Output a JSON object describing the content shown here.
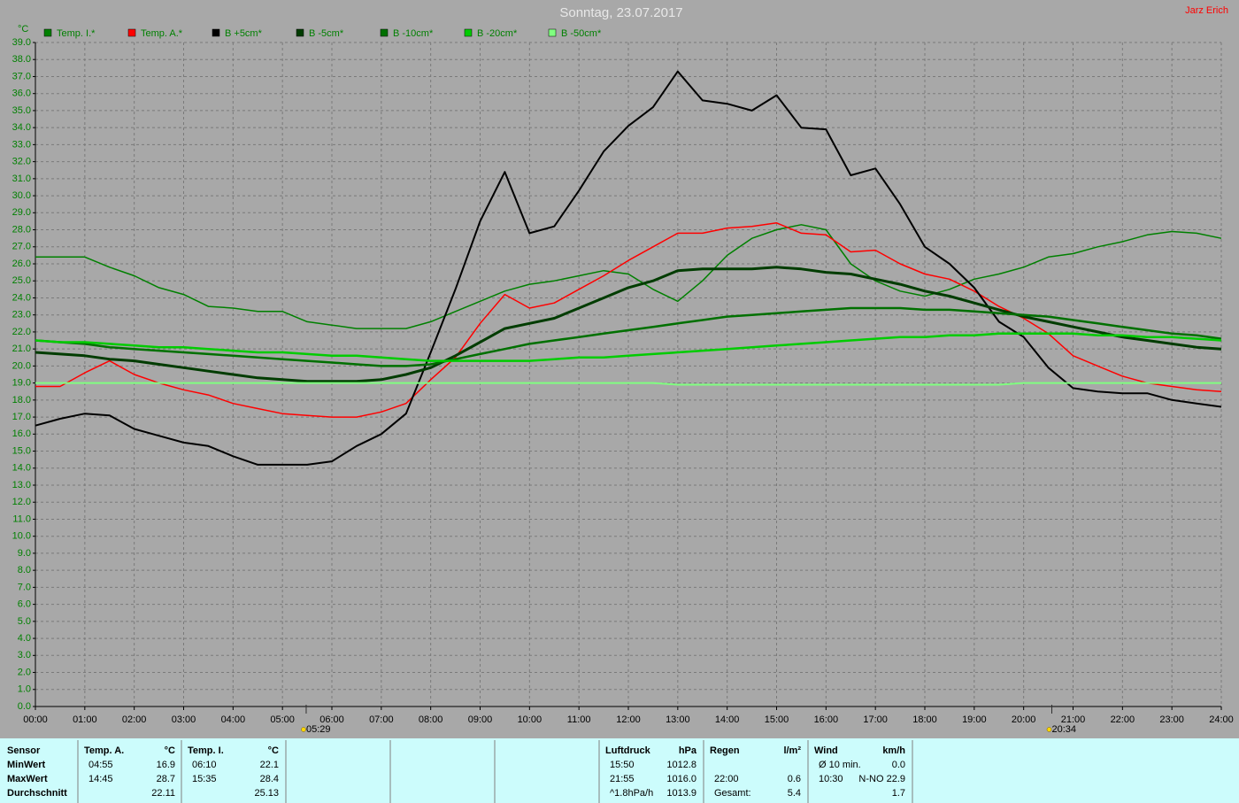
{
  "chart_data": {
    "type": "line",
    "title": "Sonntag, 23.07.2017",
    "author": "Jarz Erich",
    "y_unit": "°C",
    "xlim": [
      0,
      24
    ],
    "ylim": [
      0,
      39
    ],
    "grid": true,
    "x": [
      0,
      0.5,
      1,
      1.5,
      2,
      2.5,
      3,
      3.5,
      4,
      4.5,
      5,
      5.5,
      6,
      6.5,
      7,
      7.5,
      8,
      8.5,
      9,
      9.5,
      10,
      10.5,
      11,
      11.5,
      12,
      12.5,
      13,
      13.5,
      14,
      14.5,
      15,
      15.5,
      16,
      16.5,
      17,
      17.5,
      18,
      18.5,
      19,
      19.5,
      20,
      20.5,
      21,
      21.5,
      22,
      22.5,
      23,
      23.5,
      24
    ],
    "xticks": [
      {
        "value": 0,
        "label": "00:00"
      },
      {
        "value": 1,
        "label": "01:00"
      },
      {
        "value": 2,
        "label": "02:00"
      },
      {
        "value": 3,
        "label": "03:00"
      },
      {
        "value": 4,
        "label": "04:00"
      },
      {
        "value": 5,
        "label": "05:00"
      },
      {
        "value": 6,
        "label": "06:00"
      },
      {
        "value": 7,
        "label": "07:00"
      },
      {
        "value": 8,
        "label": "08:00"
      },
      {
        "value": 9,
        "label": "09:00"
      },
      {
        "value": 10,
        "label": "10:00"
      },
      {
        "value": 11,
        "label": "11:00"
      },
      {
        "value": 12,
        "label": "12:00"
      },
      {
        "value": 13,
        "label": "13:00"
      },
      {
        "value": 14,
        "label": "14:00"
      },
      {
        "value": 15,
        "label": "15:00"
      },
      {
        "value": 16,
        "label": "16:00"
      },
      {
        "value": 17,
        "label": "17:00"
      },
      {
        "value": 18,
        "label": "18:00"
      },
      {
        "value": 19,
        "label": "19:00"
      },
      {
        "value": 20,
        "label": "20:00"
      },
      {
        "value": 21,
        "label": "21:00"
      },
      {
        "value": 22,
        "label": "22:00"
      },
      {
        "value": 23,
        "label": "23:00"
      },
      {
        "value": 24,
        "label": "24:00"
      }
    ],
    "yticks": [
      {
        "value": 0,
        "label": "0.0"
      },
      {
        "value": 1,
        "label": "1.0"
      },
      {
        "value": 2,
        "label": "2.0"
      },
      {
        "value": 3,
        "label": "3.0"
      },
      {
        "value": 4,
        "label": "4.0"
      },
      {
        "value": 5,
        "label": "5.0"
      },
      {
        "value": 6,
        "label": "6.0"
      },
      {
        "value": 7,
        "label": "7.0"
      },
      {
        "value": 8,
        "label": "8.0"
      },
      {
        "value": 9,
        "label": "9.0"
      },
      {
        "value": 10,
        "label": "10.0"
      },
      {
        "value": 11,
        "label": "11.0"
      },
      {
        "value": 12,
        "label": "12.0"
      },
      {
        "value": 13,
        "label": "13.0"
      },
      {
        "value": 14,
        "label": "14.0"
      },
      {
        "value": 15,
        "label": "15.0"
      },
      {
        "value": 16,
        "label": "16.0"
      },
      {
        "value": 17,
        "label": "17.0"
      },
      {
        "value": 18,
        "label": "18.0"
      },
      {
        "value": 19,
        "label": "19.0"
      },
      {
        "value": 20,
        "label": "20.0"
      },
      {
        "value": 21,
        "label": "21.0"
      },
      {
        "value": 22,
        "label": "22.0"
      },
      {
        "value": 23,
        "label": "23.0"
      },
      {
        "value": 24,
        "label": "24.0"
      },
      {
        "value": 25,
        "label": "25.0"
      },
      {
        "value": 26,
        "label": "26.0"
      },
      {
        "value": 27,
        "label": "27.0"
      },
      {
        "value": 28,
        "label": "28.0"
      },
      {
        "value": 29,
        "label": "29.0"
      },
      {
        "value": 30,
        "label": "30.0"
      },
      {
        "value": 31,
        "label": "31.0"
      },
      {
        "value": 32,
        "label": "32.0"
      },
      {
        "value": 33,
        "label": "33.0"
      },
      {
        "value": 34,
        "label": "34.0"
      },
      {
        "value": 35,
        "label": "35.0"
      },
      {
        "value": 36,
        "label": "36.0"
      },
      {
        "value": 37,
        "label": "37.0"
      },
      {
        "value": 38,
        "label": "38.0"
      },
      {
        "value": 39,
        "label": "39.0"
      }
    ],
    "annotations": [
      {
        "text": "05:29",
        "x": 5.48
      },
      {
        "text": "20:34",
        "x": 20.57
      }
    ],
    "series": [
      {
        "name": "Temp. I.*",
        "color": "#008000",
        "values": [
          26.4,
          26.4,
          26.4,
          25.8,
          25.3,
          24.6,
          24.2,
          23.5,
          23.4,
          23.2,
          23.2,
          22.6,
          22.4,
          22.2,
          22.2,
          22.2,
          22.6,
          23.2,
          23.8,
          24.4,
          24.8,
          25.0,
          25.3,
          25.6,
          25.4,
          24.5,
          23.8,
          25.0,
          26.5,
          27.5,
          28.0,
          28.3,
          28.0,
          26.0,
          25.0,
          24.4,
          24.1,
          24.5,
          25.1,
          25.4,
          25.8,
          26.4,
          26.6,
          27.0,
          27.3,
          27.7,
          27.9,
          27.8,
          27.5
        ]
      },
      {
        "name": "Temp. A.*",
        "color": "#ff0000",
        "values": [
          18.8,
          18.8,
          19.6,
          20.3,
          19.5,
          19.0,
          18.6,
          18.3,
          17.8,
          17.5,
          17.2,
          17.1,
          17.0,
          17.0,
          17.3,
          17.8,
          19.2,
          20.5,
          22.5,
          24.2,
          23.4,
          23.7,
          24.5,
          25.3,
          26.2,
          27.0,
          27.8,
          27.8,
          28.1,
          28.2,
          28.4,
          27.8,
          27.7,
          26.7,
          26.8,
          26.0,
          25.4,
          25.1,
          24.4,
          23.5,
          22.8,
          21.9,
          20.6,
          20.0,
          19.4,
          19.0,
          18.8,
          18.6,
          18.5
        ]
      },
      {
        "name": "B +5cm*",
        "color": "#000000",
        "values": [
          16.5,
          16.9,
          17.2,
          17.1,
          16.3,
          15.9,
          15.5,
          15.3,
          14.7,
          14.2,
          14.2,
          14.2,
          14.4,
          15.3,
          16.0,
          17.2,
          20.8,
          24.5,
          28.5,
          31.4,
          27.8,
          28.2,
          30.3,
          32.6,
          34.1,
          35.2,
          37.3,
          35.6,
          35.4,
          35.0,
          35.9,
          34.0,
          33.9,
          31.2,
          31.6,
          29.5,
          27.0,
          26.0,
          24.6,
          22.6,
          21.7,
          19.9,
          18.7,
          18.5,
          18.4,
          18.4,
          18.0,
          17.8,
          17.6
        ]
      },
      {
        "name": "B -5cm*",
        "color": "#003c00",
        "values": [
          20.8,
          20.7,
          20.6,
          20.4,
          20.3,
          20.1,
          19.9,
          19.7,
          19.5,
          19.3,
          19.2,
          19.1,
          19.1,
          19.1,
          19.2,
          19.5,
          19.9,
          20.6,
          21.4,
          22.2,
          22.5,
          22.8,
          23.4,
          24.0,
          24.6,
          25.0,
          25.6,
          25.7,
          25.7,
          25.7,
          25.8,
          25.7,
          25.5,
          25.4,
          25.1,
          24.8,
          24.4,
          24.1,
          23.7,
          23.3,
          22.9,
          22.6,
          22.3,
          22.0,
          21.7,
          21.5,
          21.3,
          21.1,
          21.0
        ]
      },
      {
        "name": "B -10cm*",
        "color": "#007000",
        "values": [
          21.5,
          21.4,
          21.3,
          21.1,
          21.0,
          20.9,
          20.8,
          20.7,
          20.6,
          20.5,
          20.4,
          20.3,
          20.2,
          20.1,
          20.0,
          20.0,
          20.1,
          20.4,
          20.7,
          21.0,
          21.3,
          21.5,
          21.7,
          21.9,
          22.1,
          22.3,
          22.5,
          22.7,
          22.9,
          23.0,
          23.1,
          23.2,
          23.3,
          23.4,
          23.4,
          23.4,
          23.3,
          23.3,
          23.2,
          23.1,
          23.0,
          22.9,
          22.7,
          22.5,
          22.3,
          22.1,
          21.9,
          21.8,
          21.6
        ]
      },
      {
        "name": "B -20cm*",
        "color": "#00cc00",
        "values": [
          21.5,
          21.4,
          21.4,
          21.3,
          21.2,
          21.1,
          21.1,
          21.0,
          20.9,
          20.8,
          20.8,
          20.7,
          20.6,
          20.6,
          20.5,
          20.4,
          20.3,
          20.3,
          20.3,
          20.3,
          20.3,
          20.4,
          20.5,
          20.5,
          20.6,
          20.7,
          20.8,
          20.9,
          21.0,
          21.1,
          21.2,
          21.3,
          21.4,
          21.5,
          21.6,
          21.7,
          21.7,
          21.8,
          21.8,
          21.9,
          21.9,
          21.9,
          21.9,
          21.8,
          21.8,
          21.7,
          21.7,
          21.6,
          21.5
        ]
      },
      {
        "name": "B -50cm*",
        "color": "#80ff80",
        "values": [
          19.0,
          19.0,
          19.0,
          19.0,
          19.0,
          19.0,
          19.0,
          19.0,
          19.0,
          19.0,
          19.0,
          19.0,
          19.0,
          19.0,
          19.0,
          19.0,
          19.0,
          19.0,
          19.0,
          19.0,
          19.0,
          19.0,
          19.0,
          19.0,
          19.0,
          19.0,
          18.9,
          18.9,
          18.9,
          18.9,
          18.9,
          18.9,
          18.9,
          18.9,
          18.9,
          18.9,
          18.9,
          18.9,
          18.9,
          18.9,
          19.0,
          19.0,
          19.0,
          19.0,
          19.0,
          19.0,
          19.0,
          19.0,
          19.0
        ]
      }
    ]
  },
  "stats_table": {
    "row_labels": [
      "Sensor",
      "MinWert",
      "MaxWert",
      "Durchschnitt"
    ],
    "blocks": [
      {
        "name": "Temp. A.",
        "unit": "°C",
        "rows": [
          [
            "04:55",
            "16.9"
          ],
          [
            "14:45",
            "28.7"
          ],
          [
            null,
            "22.11"
          ]
        ]
      },
      {
        "name": "Temp. I.",
        "unit": "°C",
        "rows": [
          [
            "06:10",
            "22.1"
          ],
          [
            "15:35",
            "28.4"
          ],
          [
            null,
            "25.13"
          ]
        ]
      },
      {
        "name": "Luftdruck",
        "unit": "hPa",
        "rows": [
          [
            "15:50",
            "1012.8"
          ],
          [
            "21:55",
            "1016.0"
          ],
          [
            "^1.8hPa/h",
            "1013.9"
          ]
        ]
      },
      {
        "name": "Regen",
        "unit": "l/m²",
        "rows": [
          [
            null,
            null
          ],
          [
            "22:00",
            "0.6"
          ],
          [
            "Gesamt:",
            "5.4"
          ]
        ]
      },
      {
        "name": "Wind",
        "unit": "km/h",
        "rows": [
          [
            "Ø 10 min.",
            "0.0"
          ],
          [
            "10:30",
            "N-NO 22.9"
          ],
          [
            null,
            "1.7"
          ]
        ]
      }
    ]
  }
}
